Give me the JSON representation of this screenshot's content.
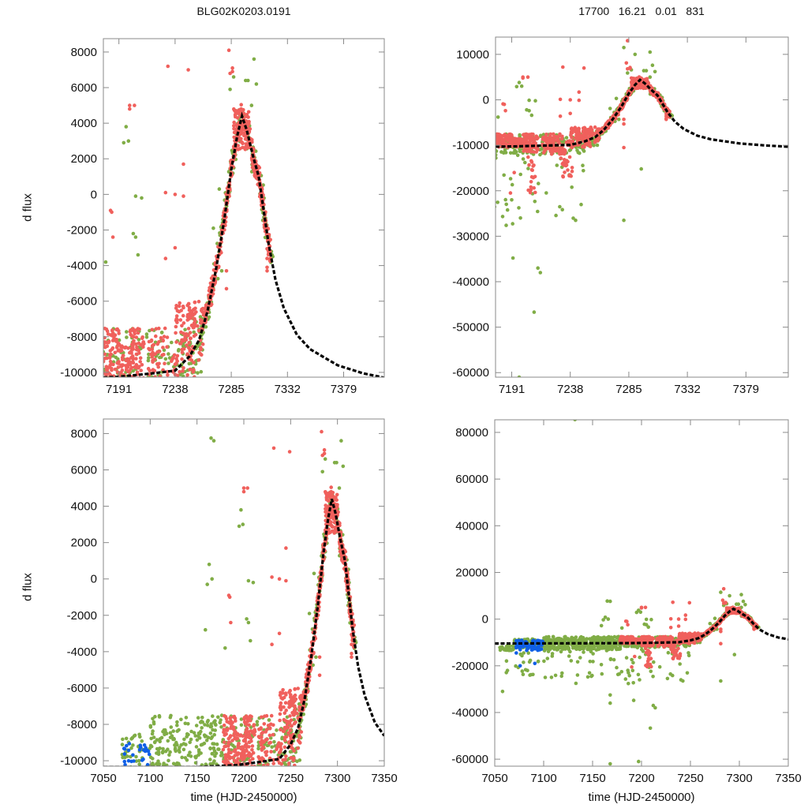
{
  "chart_data": {
    "type": "scatter",
    "title_left": "BLG02K0203.0191",
    "title_right": "17700   16.21   0.01   831",
    "xlabel": "time (HJD-2450000)",
    "ylabel": "d flux",
    "colors": {
      "red": "#f0605c",
      "green": "#80ad46",
      "blue": "#0f5fe6",
      "model": "#000000"
    },
    "views": [
      {
        "name": "top-left",
        "xlim": [
          7178,
          7413
        ],
        "ylim": [
          -10270,
          8750
        ],
        "xticks": [
          7191,
          7238,
          7285,
          7332,
          7379
        ],
        "yticks": [
          8000,
          6000,
          4000,
          2000,
          0,
          -2000,
          -4000,
          -6000,
          -8000,
          -10000
        ]
      },
      {
        "name": "top-right",
        "xlim": [
          7178,
          7413
        ],
        "ylim": [
          -61000,
          13800
        ],
        "xticks": [
          7191,
          7238,
          7285,
          7332,
          7379
        ],
        "yticks": [
          10000,
          0,
          -10000,
          -20000,
          -30000,
          -40000,
          -50000,
          -60000
        ]
      },
      {
        "name": "bottom-left",
        "xlim": [
          7050,
          7350
        ],
        "ylim": [
          -10300,
          8800
        ],
        "xticks": [
          7050,
          7100,
          7150,
          7200,
          7250,
          7300,
          7350
        ],
        "yticks": [
          8000,
          6000,
          4000,
          2000,
          0,
          -2000,
          -4000,
          -6000,
          -8000,
          -10000
        ]
      },
      {
        "name": "bottom-right",
        "xlim": [
          7050,
          7350
        ],
        "ylim": [
          -63000,
          85400
        ],
        "xticks": [
          7050,
          7100,
          7150,
          7200,
          7250,
          7300,
          7350
        ],
        "yticks": [
          80000,
          60000,
          40000,
          20000,
          0,
          -20000,
          -40000,
          -60000
        ]
      }
    ],
    "model": {
      "name": "microlensing model",
      "points": [
        [
          7050,
          -10450
        ],
        [
          7150,
          -10350
        ],
        [
          7191,
          -10250
        ],
        [
          7220,
          -10050
        ],
        [
          7238,
          -9900
        ],
        [
          7250,
          -9100
        ],
        [
          7258,
          -8200
        ],
        [
          7265,
          -6600
        ],
        [
          7272,
          -4300
        ],
        [
          7279,
          -1500
        ],
        [
          7285,
          1400
        ],
        [
          7290,
          3300
        ],
        [
          7294,
          4400
        ],
        [
          7298,
          3600
        ],
        [
          7303,
          2200
        ],
        [
          7308,
          1000
        ],
        [
          7316,
          -2700
        ],
        [
          7322,
          -4800
        ],
        [
          7329,
          -6400
        ],
        [
          7340,
          -7900
        ],
        [
          7351,
          -8700
        ],
        [
          7374,
          -9600
        ],
        [
          7395,
          -10050
        ],
        [
          7413,
          -10300
        ]
      ]
    },
    "series": [
      {
        "name": "green",
        "color_key": "green",
        "bands": [
          [
            7055,
            7070,
            -13500,
            -11500,
            30
          ],
          [
            7070,
            7100,
            -12500,
            -8500,
            70
          ],
          [
            7100,
            7180,
            -13000,
            -7500,
            380
          ],
          [
            7055,
            7180,
            -25000,
            -13000,
            60
          ],
          [
            7180,
            7250,
            -12000,
            -7500,
            170
          ],
          [
            7180,
            7250,
            -28000,
            -12000,
            35
          ],
          [
            7250,
            7262,
            -10500,
            -6500,
            30
          ]
        ],
        "follow": [
          [
            7255,
            7320,
            1300,
            170
          ]
        ],
        "points": [
          [
            7165,
            7750
          ],
          [
            7163,
            800
          ],
          [
            7161,
            -300
          ],
          [
            7159,
            -2800
          ],
          [
            7180,
            -3800
          ],
          [
            7195,
            2900
          ],
          [
            7197,
            3800
          ],
          [
            7205,
            -100
          ],
          [
            7203,
            -2200
          ],
          [
            7205,
            -2400
          ],
          [
            7207,
            -3400
          ],
          [
            7275,
            300
          ],
          [
            7277,
            -4300
          ],
          [
            7270,
            -1900
          ],
          [
            7304,
            7600
          ],
          [
            7297,
            6400
          ],
          [
            7299,
            6400
          ],
          [
            7306,
            6200
          ],
          [
            7287,
            6600
          ],
          [
            7284,
            5900
          ],
          [
            7302,
            5000
          ],
          [
            7132,
            85500
          ],
          [
            7168,
            -62000
          ],
          [
            7197,
            -61000
          ],
          [
            7209,
            -46700
          ],
          [
            7214,
            -38000
          ],
          [
            7212,
            -37000
          ],
          [
            7168,
            -36000
          ],
          [
            7168,
            -32500
          ],
          [
            7058,
            -31000
          ],
          [
            7133,
            -27500
          ],
          [
            7192,
            -34800
          ],
          [
            7198,
            -26000
          ],
          [
            7281,
            -26500
          ],
          [
            7295,
            -15200
          ],
          [
            7168,
            7600
          ],
          [
            7166,
            0
          ],
          [
            7302,
            10500
          ],
          [
            7281,
            11500
          ],
          [
            7290,
            10000
          ],
          [
            7199,
            3000
          ],
          [
            7210,
            -200
          ],
          [
            7191,
            -22000
          ],
          [
            7086,
            -24000
          ],
          [
            7063,
            -22000
          ]
        ]
      },
      {
        "name": "red",
        "color_key": "red",
        "bands": [
          [
            7178,
            7192,
            -10500,
            -7500,
            80
          ],
          [
            7192,
            7200,
            -10500,
            -8500,
            40
          ],
          [
            7200,
            7212,
            -11500,
            -7500,
            90
          ],
          [
            7204,
            7210,
            -21000,
            -12000,
            18
          ],
          [
            7215,
            7232,
            -12000,
            -7500,
            80
          ],
          [
            7230,
            7240,
            -17000,
            -9000,
            40
          ],
          [
            7238,
            7255,
            -10500,
            -6000,
            90
          ],
          [
            7250,
            7262,
            -9500,
            -6000,
            40
          ],
          [
            7287,
            7300,
            2500,
            4800,
            90
          ]
        ],
        "follow": [
          [
            7262,
            7318,
            900,
            360
          ]
        ],
        "points": [
          [
            7200,
            5000
          ],
          [
            7200,
            4800
          ],
          [
            7184,
            -900
          ],
          [
            7186,
            -2400
          ],
          [
            7230,
            100
          ],
          [
            7232,
            7200
          ],
          [
            7245,
            1700
          ],
          [
            7245,
            -100
          ],
          [
            7230,
            -3600
          ],
          [
            7283,
            8100
          ],
          [
            7286,
            7100
          ],
          [
            7286,
            6900
          ],
          [
            7284,
            6800
          ],
          [
            7281,
            -4300
          ],
          [
            7281,
            -5300
          ],
          [
            7315,
            -3600
          ],
          [
            7315,
            -4100
          ],
          [
            7315,
            -4300
          ],
          [
            7284,
            13000
          ],
          [
            7249,
            7000
          ],
          [
            7204,
            5000
          ],
          [
            7185,
            -1000
          ],
          [
            7281,
            -10500
          ],
          [
            7238,
            0
          ],
          [
            7238,
            -3000
          ],
          [
            7193,
            -16000
          ],
          [
            7190,
            -20500
          ]
        ]
      },
      {
        "name": "blue",
        "color_key": "blue",
        "bands": [
          [
            7072,
            7100,
            -13500,
            -9000,
            70
          ]
        ],
        "follow": [],
        "points": [
          [
            7072,
            -14500
          ],
          [
            7076,
            -20000
          ],
          [
            7091,
            -19000
          ]
        ]
      }
    ]
  }
}
